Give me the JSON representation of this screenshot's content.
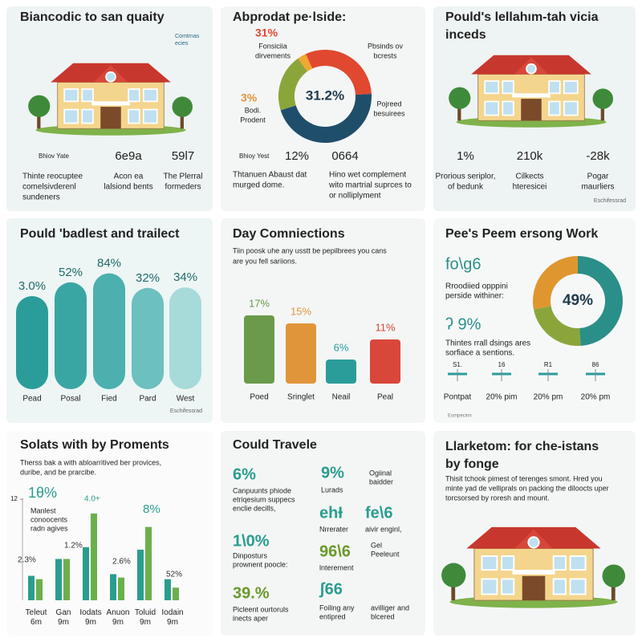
{
  "panels": [
    {
      "title": "Biancodic to san quaity",
      "logo": [
        "Comtrnas",
        "ecies"
      ],
      "badge": "Bhiov Yate",
      "lines": [
        "Thinte reocuptee",
        "comelsivderenl",
        "sundeners"
      ],
      "stats": [
        {
          "value": "6e9a",
          "lines": [
            "Acon ea",
            "lalsiond bents"
          ]
        },
        {
          "value": "59l7",
          "lines": [
            "The Plerral",
            "formeders"
          ]
        }
      ]
    },
    {
      "title": "Abprodat pe·lside:",
      "left": [
        {
          "value": "31%",
          "lines": [
            "Fonsiciia",
            "dirvements"
          ]
        },
        {
          "value": "3%",
          "lines": [
            "Bodi.",
            "Prodent"
          ]
        }
      ],
      "right": [
        [
          "Pbsinds ov",
          "bcrests"
        ],
        [
          "Pojreed",
          "besuirees"
        ]
      ],
      "badge": "Bhioy Yest",
      "stats": [
        {
          "value": "12%",
          "lines": [
            "Thtanuen Abaust dat",
            "murged dome."
          ]
        },
        {
          "value": "0664",
          "lines": [
            "Hino wet complement",
            "wito martrial suprces to",
            "or nolliplyment"
          ]
        }
      ]
    },
    {
      "title": [
        "Pould's lellahım-tah vicia",
        "inceds"
      ],
      "stats": [
        {
          "value": "1%",
          "lines": [
            "Prorious seriplor,",
            "of bedunk"
          ]
        },
        {
          "value": "210k",
          "lines": [
            "Cilkects",
            "hteresicei"
          ]
        },
        {
          "value": "-28k",
          "lines": [
            "Pogar",
            "maurliers"
          ]
        }
      ],
      "footer": "Eschifessrad"
    },
    {
      "title": "Pould 'badlest and trailect",
      "footer": "Eschifessrad"
    },
    {
      "title": "Day Comniections",
      "lines": [
        "Tiin poosk uhe any usstt be pepilbrees you cans",
        "are you fell sariions."
      ]
    },
    {
      "title": "Pee's Peem ersong Work",
      "stats": [
        {
          "value": "fo\\g6",
          "lines": [
            "Rroodiied opppini",
            "perside withiner:"
          ]
        },
        {
          "value": "ʔ 9%",
          "lines": [
            "Thintes rrall dsings ares",
            "sorfiace a sentions."
          ]
        }
      ],
      "sliders": [
        {
          "top": "S1.",
          "label": "Pontpat"
        },
        {
          "top": "16",
          "label": "20% pim"
        },
        {
          "top": "R1",
          "label": "20% pm"
        },
        {
          "top": "86",
          "label": "20% pm"
        }
      ],
      "footer": "Esmpecinn"
    },
    {
      "title": "Solats with by Proments",
      "lines": [
        "Therss bak a with abloarritived ber provices,",
        "duribe, and be prarcibe."
      ],
      "notes": [
        "1θ%",
        "4.0+",
        "8%",
        "1.2%",
        "2.3%",
        "2.6%",
        "52%"
      ],
      "note_lines": [
        "Manlest",
        "conoocents",
        "radn agives"
      ]
    },
    {
      "title": "Could Travele",
      "items": [
        {
          "value": "6%",
          "lines": [
            "Canpuunts phiode",
            "etriqesium suppecs",
            "enclie decills,"
          ]
        },
        {
          "value": "9%",
          "lines": [
            "Lurads"
          ]
        },
        {
          "lines": [
            "Ogiinal",
            "baidder"
          ]
        },
        {
          "value": "ehƗ",
          "lines": [
            "Nrrerater"
          ]
        },
        {
          "value": "fe\\6",
          "lines": [
            "aivir enginl,"
          ]
        },
        {
          "value": "1\\0%",
          "lines": [
            "Dinposturs",
            "prownent poocle:"
          ]
        },
        {
          "value": "96\\6",
          "lines": [
            "lnterement"
          ]
        },
        {
          "lines": [
            "Gel",
            "Peeleunt"
          ]
        },
        {
          "value": "39.%",
          "lines": [
            "Picleent ourtoruls",
            "inects aper"
          ]
        },
        {
          "value": "ʃ66",
          "lines": [
            "Foiling any",
            "entipred"
          ]
        },
        {
          "lines": [
            "avilliger and",
            "blcered"
          ]
        }
      ]
    },
    {
      "title": [
        "Llarketom: for che-istans",
        "by fonge"
      ],
      "lines": [
        "Thisit tchook pimest of terenges smont. Hred you",
        "minte yad de velliprals on packing the diloocts uper",
        "torcsorsed by roresh and mount."
      ]
    }
  ],
  "chart_data": [
    {
      "type": "donut",
      "values": [
        31,
        46,
        20,
        3
      ],
      "colors": [
        "#e0492f",
        "#1f4e6b",
        "#8aa63b",
        "#f0a830"
      ],
      "center_label": "31.2%"
    },
    {
      "type": "bar",
      "categories": [
        "Pead",
        "Posal",
        "Fied",
        "Pard",
        "West"
      ],
      "values": [
        3.0,
        52,
        84,
        32,
        34
      ],
      "value_labels": [
        "3.0%",
        "52%",
        "84%",
        "32%",
        "34%"
      ],
      "colors": [
        "#2a9d9b",
        "#3aa6a4",
        "#4bb0ae",
        "#6cc0be",
        "#a6dbda"
      ]
    },
    {
      "type": "bar",
      "categories": [
        "Poed",
        "Sringlet",
        "Neail",
        "Peal"
      ],
      "values": [
        17,
        15,
        6,
        11
      ],
      "value_labels": [
        "17%",
        "15%",
        "6%",
        "11%"
      ],
      "colors": [
        "#6a9a4a",
        "#e0953a",
        "#2a9d9b",
        "#d9463a"
      ]
    },
    {
      "type": "donut",
      "values": [
        49,
        23,
        28
      ],
      "colors": [
        "#2a8f88",
        "#8aa63b",
        "#e0962e"
      ],
      "center_label": "49%"
    },
    {
      "type": "grouped-bar",
      "categories": [
        "Teleut 6m",
        "Gan 9m",
        "Iodats 9m",
        "Anuon 9m",
        "Toluid 9m",
        "Iodain 9m"
      ],
      "series": [
        {
          "color": "#2a9d8f",
          "values": [
            2.9,
            4.9,
            6.3,
            3.1,
            6.0,
            2.5
          ]
        },
        {
          "color": "#6ab04c",
          "values": [
            2.5,
            4.9,
            10.3,
            2.7,
            8.7,
            1.5
          ]
        }
      ],
      "ylim": [
        0,
        12
      ],
      "yticks": [
        12
      ]
    }
  ]
}
